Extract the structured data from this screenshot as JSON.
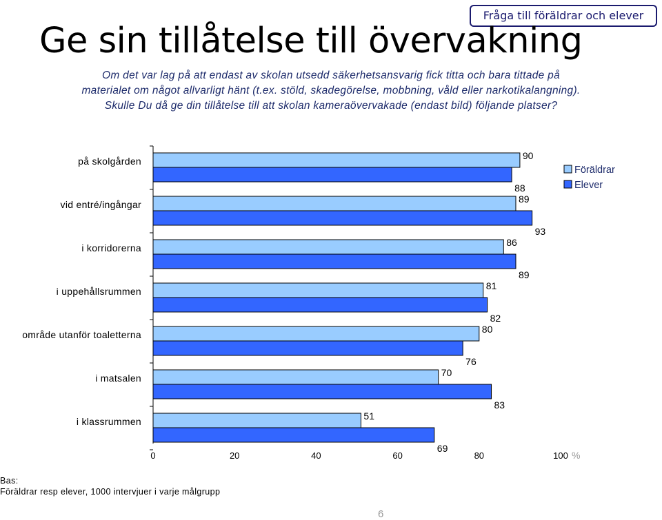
{
  "header": {
    "tag": "Fråga till föräldrar och elever",
    "title": "Ge sin tillåtelse till övervakning",
    "question_lines": [
      "Om det var lag på att endast av skolan utsedd säkerhetsansvarig fick titta och bara tittade på",
      "materialet om något allvarligt hänt (t.ex. stöld, skadegörelse, mobbning, våld eller narkotikalangning).",
      "Skulle Du då ge din tillåtelse till att skolan kameraövervakade (endast bild) följande platser?"
    ]
  },
  "chart_data": {
    "type": "bar",
    "orientation": "horizontal",
    "categories": [
      "på skolgården",
      "vid entré/ingångar",
      "i korridorerna",
      "i uppehållsrummen",
      "område utanför toaletterna",
      "i matsalen",
      "i klassrummen"
    ],
    "series": [
      {
        "name": "Föräldrar",
        "color": "#99ccff",
        "values": [
          90,
          89,
          86,
          81,
          80,
          70,
          51
        ]
      },
      {
        "name": "Elever",
        "color": "#3366ff",
        "values": [
          88,
          93,
          89,
          82,
          76,
          83,
          69
        ]
      }
    ],
    "xlim": [
      0,
      100
    ],
    "xticks": [
      "0",
      "20",
      "40",
      "60",
      "80",
      "100"
    ],
    "unit": "%",
    "legend": "top-right"
  },
  "footer": {
    "base_label": "Bas:",
    "base_text": "Föräldrar resp elever, 1000 intervjuer i varje målgrupp",
    "page_number": "6"
  }
}
